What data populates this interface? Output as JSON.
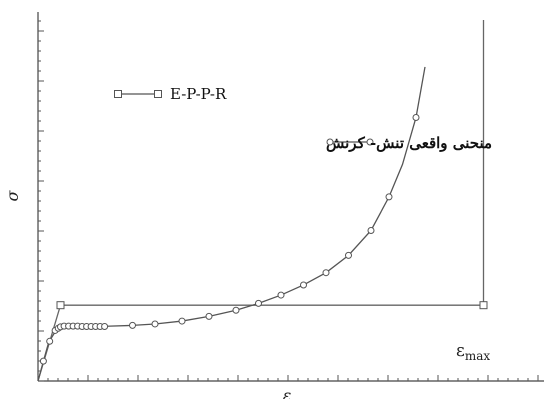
{
  "chart_data": {
    "type": "line",
    "xlabel": "ε",
    "ylabel": "σ",
    "xlim": [
      0,
      1
    ],
    "ylim": [
      0,
      1
    ],
    "grid": false,
    "legend_position": "top-left",
    "annotation": {
      "text_main": "ε",
      "text_sub": "max"
    },
    "series": [
      {
        "name": "E-P-P-R",
        "marker": "square",
        "x": [
          0,
          0.05,
          0.99,
          0.99
        ],
        "y": [
          0,
          0.21,
          0.21,
          1
        ]
      },
      {
        "name": "منحنی واقعی تنش- کرنش",
        "marker": "circle",
        "line": [
          [
            0,
            0
          ],
          [
            0.012,
            0.055
          ],
          [
            0.024,
            0.108
          ],
          [
            0.036,
            0.132
          ],
          [
            0.045,
            0.144
          ],
          [
            0.052,
            0.149
          ],
          [
            0.068,
            0.152
          ],
          [
            0.085,
            0.152
          ],
          [
            0.1,
            0.151
          ],
          [
            0.12,
            0.151
          ],
          [
            0.14,
            0.151
          ],
          [
            0.16,
            0.152
          ],
          [
            0.21,
            0.154
          ],
          [
            0.26,
            0.158
          ],
          [
            0.32,
            0.166
          ],
          [
            0.38,
            0.179
          ],
          [
            0.44,
            0.196
          ],
          [
            0.49,
            0.215
          ],
          [
            0.54,
            0.238
          ],
          [
            0.59,
            0.266
          ],
          [
            0.64,
            0.3
          ],
          [
            0.69,
            0.348
          ],
          [
            0.74,
            0.417
          ],
          [
            0.78,
            0.51
          ],
          [
            0.81,
            0.6
          ],
          [
            0.84,
            0.73
          ],
          [
            0.86,
            0.87
          ]
        ],
        "markers": [
          [
            0.012,
            0.055
          ],
          [
            0.026,
            0.11
          ],
          [
            0.038,
            0.14
          ],
          [
            0.045,
            0.146
          ],
          [
            0.05,
            0.15
          ],
          [
            0.058,
            0.152
          ],
          [
            0.068,
            0.152
          ],
          [
            0.078,
            0.152
          ],
          [
            0.088,
            0.152
          ],
          [
            0.098,
            0.151
          ],
          [
            0.108,
            0.151
          ],
          [
            0.118,
            0.151
          ],
          [
            0.128,
            0.151
          ],
          [
            0.138,
            0.151
          ],
          [
            0.148,
            0.151
          ],
          [
            0.21,
            0.154
          ],
          [
            0.26,
            0.158
          ],
          [
            0.32,
            0.166
          ],
          [
            0.38,
            0.179
          ],
          [
            0.44,
            0.196
          ],
          [
            0.49,
            0.215
          ],
          [
            0.54,
            0.238
          ],
          [
            0.59,
            0.266
          ],
          [
            0.64,
            0.3
          ],
          [
            0.69,
            0.348
          ],
          [
            0.74,
            0.417
          ],
          [
            0.78,
            0.51
          ],
          [
            0.84,
            0.73
          ]
        ]
      }
    ]
  }
}
